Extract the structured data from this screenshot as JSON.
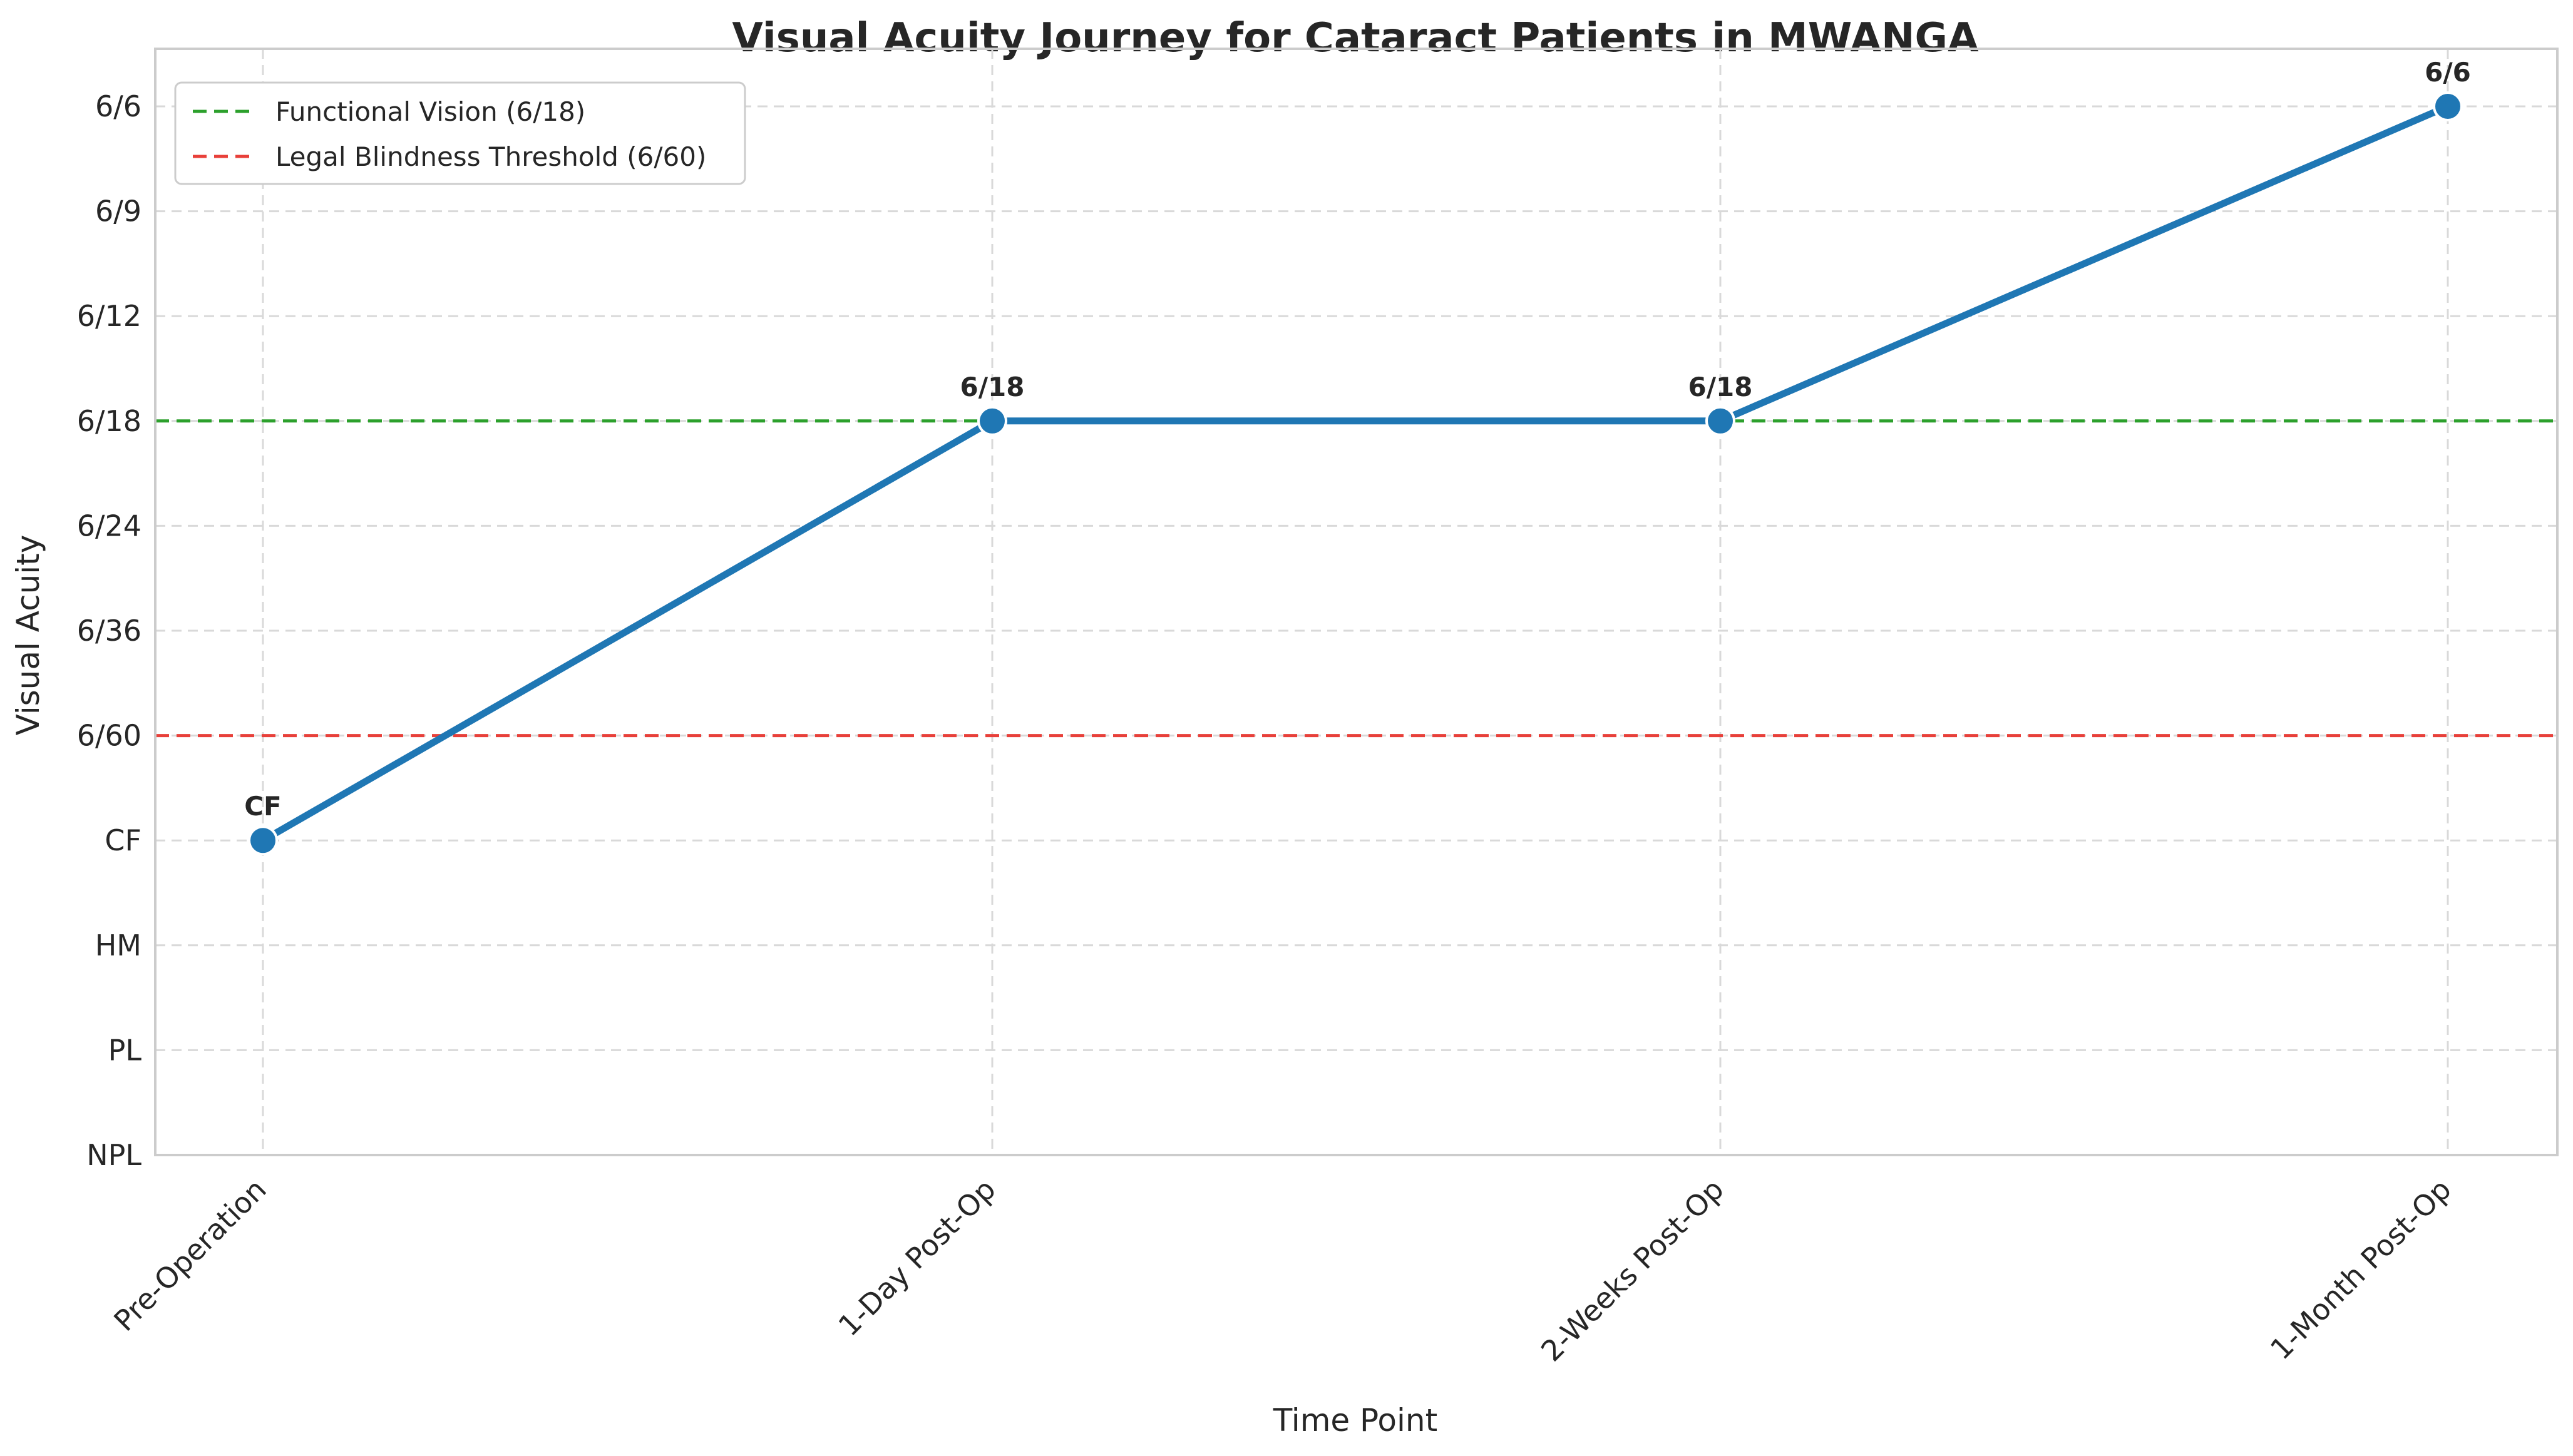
{
  "chart_data": {
    "type": "line",
    "title": "Visual Acuity Journey for Cataract Patients in MWANGA",
    "xlabel": "Time Point",
    "ylabel": "Visual Acuity",
    "categories": [
      "Pre-Operation",
      "1-Day Post-Op",
      "2-Weeks Post-Op",
      "1-Month Post-Op"
    ],
    "y_categories": [
      "NPL",
      "PL",
      "HM",
      "CF",
      "6/60",
      "6/36",
      "6/24",
      "6/18",
      "6/12",
      "6/9",
      "6/6"
    ],
    "series": [
      {
        "values": [
          "CF",
          "6/18",
          "6/18",
          "6/6"
        ],
        "color": "#1f77b4"
      }
    ],
    "data_labels": [
      "CF",
      "6/18",
      "6/18",
      "6/6"
    ],
    "reference_lines": [
      {
        "label": "Functional Vision (6/18)",
        "value": "6/18",
        "color": "#2ca02c",
        "style": "dashed"
      },
      {
        "label": "Legal Blindness Threshold (6/60)",
        "value": "6/60",
        "color": "#e8403a",
        "style": "dashed"
      }
    ],
    "grid": true,
    "legend_position": "top-left",
    "axis_color": "#cccccc",
    "grid_color": "#d9d9d9"
  }
}
